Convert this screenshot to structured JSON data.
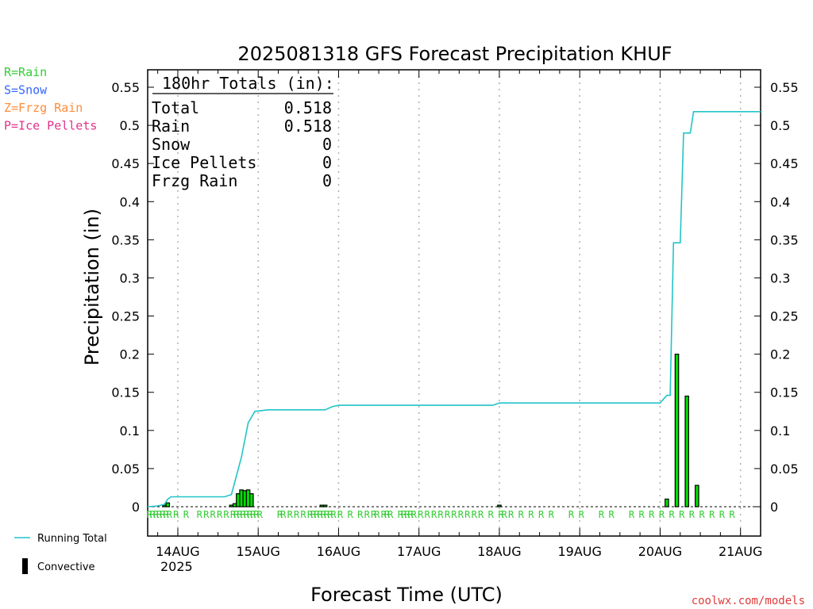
{
  "chart_data": {
    "type": "bar",
    "title": "2025081318 GFS Forecast Precipitation KHUF",
    "xlabel": "Forecast Time (UTC)",
    "ylabel": "Precipitation (in)",
    "ylim": [
      0,
      0.55
    ],
    "y_ticks": [
      "0",
      "0.05",
      "0.1",
      "0.15",
      "0.2",
      "0.25",
      "0.3",
      "0.35",
      "0.4",
      "0.45",
      "0.5",
      "0.55"
    ],
    "x_unit": "forecast hour",
    "x_range": [
      -3,
      180
    ],
    "x_ticks": [
      {
        "hour": 6,
        "label": "14AUG",
        "sub": "2025"
      },
      {
        "hour": 30,
        "label": "15AUG",
        "sub": ""
      },
      {
        "hour": 54,
        "label": "16AUG",
        "sub": ""
      },
      {
        "hour": 78,
        "label": "17AUG",
        "sub": ""
      },
      {
        "hour": 102,
        "label": "18AUG",
        "sub": ""
      },
      {
        "hour": 126,
        "label": "19AUG",
        "sub": ""
      },
      {
        "hour": 150,
        "label": "20AUG",
        "sub": ""
      },
      {
        "hour": 174,
        "label": "21AUG",
        "sub": ""
      }
    ],
    "grid": "vertical dotted at day boundaries",
    "legend_left": [
      {
        "text": "R=Rain",
        "color": "#33cc33"
      },
      {
        "text": "S=Snow",
        "color": "#3366ff"
      },
      {
        "text": "Z=Frzg Rain",
        "color": "#ff8c3a"
      },
      {
        "text": "P=Ice Pellets",
        "color": "#e0338a"
      }
    ],
    "legend_bottom": [
      {
        "text": "Running Total",
        "kind": "line",
        "color": "#22c4c8"
      },
      {
        "text": "Convective",
        "kind": "bar",
        "color": "#000000"
      }
    ],
    "totals": {
      "heading": "180hr Totals (in):",
      "rows": [
        {
          "label": "Total",
          "value": "0.518"
        },
        {
          "label": "Rain",
          "value": "0.518"
        },
        {
          "label": "Snow",
          "value": "0"
        },
        {
          "label": "Ice Pellets",
          "value": "0"
        },
        {
          "label": "Frzg Rain",
          "value": "0"
        }
      ]
    },
    "series": [
      {
        "name": "Running Total",
        "kind": "line",
        "color": "#22c4c8",
        "x": [
          -3,
          0,
          2,
          3,
          4,
          20,
          22,
          25,
          27,
          29,
          33,
          50,
          52,
          54,
          60,
          100,
          102,
          104,
          150,
          152,
          153,
          154,
          155,
          156,
          157,
          158,
          159,
          160,
          162,
          180
        ],
        "y": [
          0,
          0.001,
          0.003,
          0.01,
          0.013,
          0.013,
          0.016,
          0.065,
          0.11,
          0.125,
          0.127,
          0.127,
          0.131,
          0.133,
          0.133,
          0.133,
          0.136,
          0.136,
          0.136,
          0.146,
          0.146,
          0.346,
          0.346,
          0.346,
          0.49,
          0.49,
          0.49,
          0.518,
          0.518,
          0.518
        ]
      },
      {
        "name": "Convective",
        "kind": "bar",
        "x": [
          2,
          3,
          22,
          23,
          24,
          25,
          26,
          27,
          28,
          49,
          50,
          102,
          152,
          155,
          158,
          161
        ],
        "y": [
          0.002,
          0.005,
          0.002,
          0.004,
          0.017,
          0.022,
          0.021,
          0.022,
          0.017,
          0.002,
          0.002,
          0.002,
          0.01,
          0.2,
          0.145,
          0.028
        ],
        "color": "#000000",
        "fill": "#00dd00"
      }
    ],
    "ptype_marks": {
      "symbol": "R",
      "color": "#33cc33",
      "hours": [
        -3,
        -2,
        -1,
        0,
        1,
        2,
        3,
        5,
        8,
        12,
        14,
        16,
        18,
        20,
        22,
        23,
        24,
        25,
        26,
        27,
        28,
        29,
        30,
        36,
        37,
        39,
        41,
        43,
        45,
        46,
        47,
        48,
        49,
        50,
        51,
        52,
        54,
        57,
        60,
        62,
        64,
        65,
        67,
        68,
        69,
        72,
        73,
        74,
        75,
        76,
        78,
        80,
        82,
        84,
        86,
        88,
        90,
        92,
        94,
        96,
        99,
        102,
        103,
        105,
        108,
        111,
        114,
        117,
        123,
        126,
        132,
        135,
        141,
        144,
        147,
        150,
        153,
        156,
        159,
        162,
        165,
        168,
        171
      ]
    }
  },
  "footer": {
    "credit": "coolwx.com/models"
  }
}
